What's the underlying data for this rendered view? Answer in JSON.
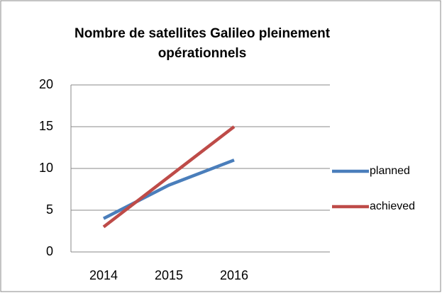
{
  "chart_data": {
    "type": "line",
    "title": "Nombre de satellites Galileo pleinement opérationnels",
    "categories": [
      "2014",
      "2015",
      "2016"
    ],
    "series": [
      {
        "name": "planned",
        "color": "#4a7ebb",
        "values": [
          4,
          8,
          11
        ]
      },
      {
        "name": "achieved",
        "color": "#be4b48",
        "values": [
          3,
          9,
          15
        ]
      }
    ],
    "ylim": [
      0,
      20
    ],
    "yticks": [
      0,
      5,
      10,
      15,
      20
    ],
    "grid": true,
    "legend": "right"
  }
}
